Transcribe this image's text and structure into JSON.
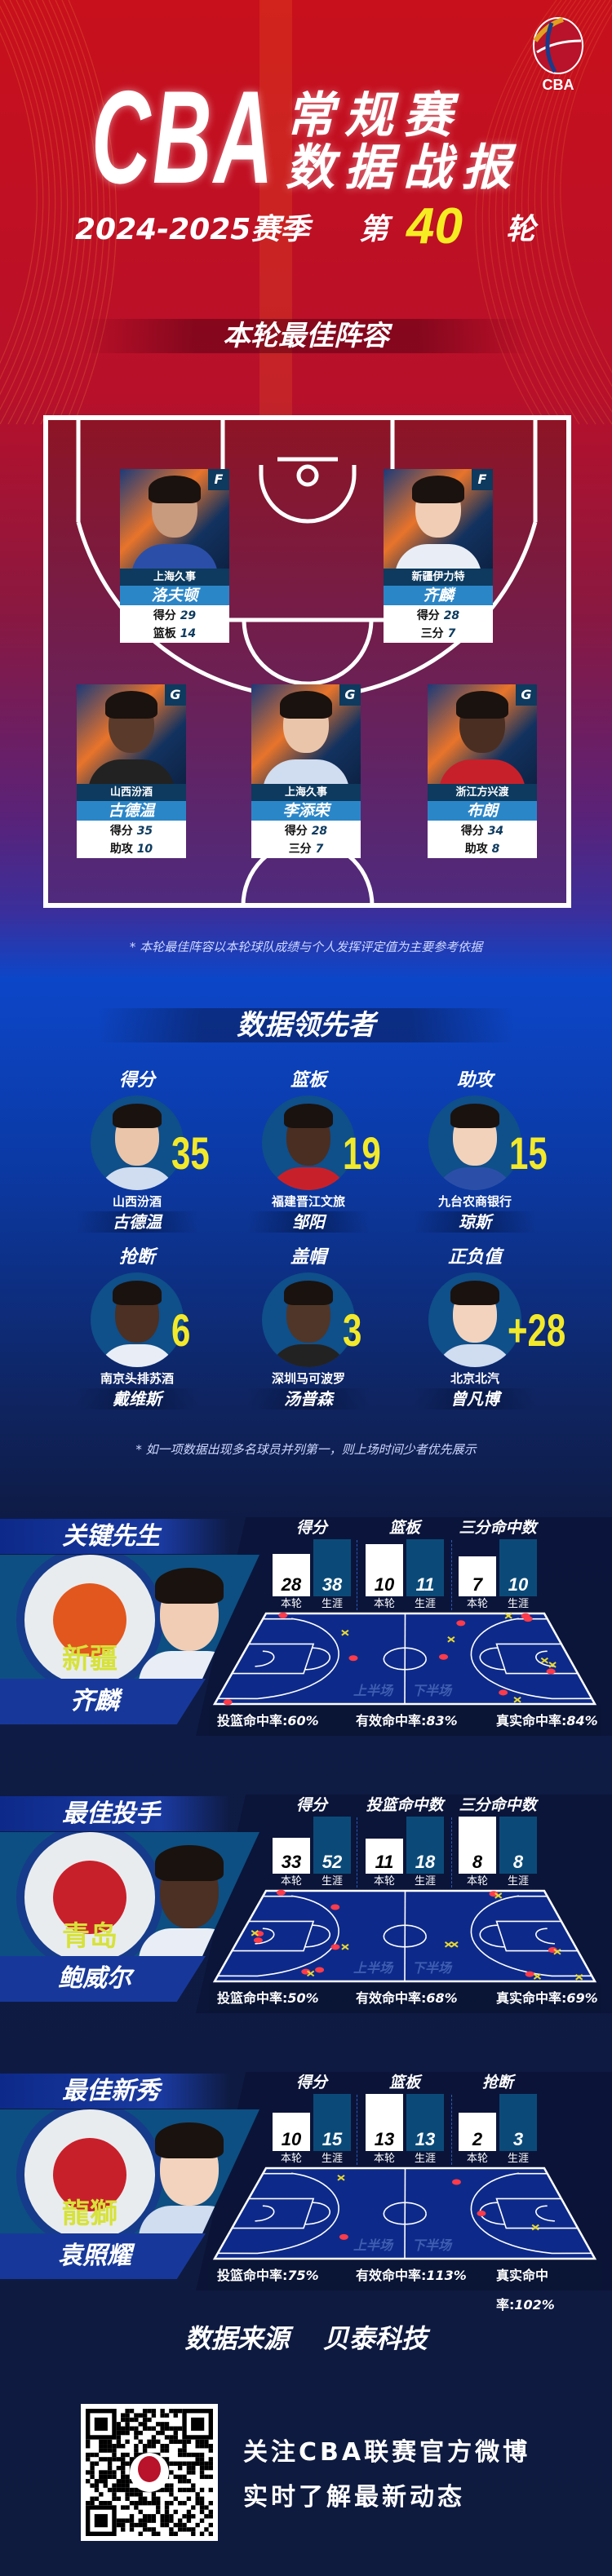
{
  "header": {
    "logo_text": "CBA",
    "title_big": "CBA",
    "title_line1": "常规赛",
    "title_line2": "数据战报",
    "season": "2024-2025赛季",
    "round_prefix": "第",
    "round_number": "40",
    "round_suffix": "轮"
  },
  "lineup": {
    "title": "本轮最佳阵容",
    "players": [
      {
        "position": "F",
        "team": "上海久事",
        "name": "洛夫顿",
        "stats": [
          {
            "label": "得分",
            "value": "29"
          },
          {
            "label": "篮板",
            "value": "14"
          }
        ]
      },
      {
        "position": "F",
        "team": "新疆伊力特",
        "name": "齐麟",
        "stats": [
          {
            "label": "得分",
            "value": "28"
          },
          {
            "label": "三分",
            "value": "7"
          }
        ]
      },
      {
        "position": "G",
        "team": "山西汾酒",
        "name": "古德温",
        "stats": [
          {
            "label": "得分",
            "value": "35"
          },
          {
            "label": "助攻",
            "value": "10"
          }
        ]
      },
      {
        "position": "G",
        "team": "上海久事",
        "name": "李添荣",
        "stats": [
          {
            "label": "得分",
            "value": "28"
          },
          {
            "label": "三分",
            "value": "7"
          }
        ]
      },
      {
        "position": "G",
        "team": "浙江方兴渡",
        "name": "布朗",
        "stats": [
          {
            "label": "得分",
            "value": "34"
          },
          {
            "label": "助攻",
            "value": "8"
          }
        ]
      }
    ],
    "note": "* 本轮最佳阵容以本轮球队成绩与个人发挥评定值为主要参考依据"
  },
  "leaders": {
    "title": "数据领先者",
    "items": [
      {
        "category": "得分",
        "value": "35",
        "team": "山西汾酒",
        "name": "古德温"
      },
      {
        "category": "篮板",
        "value": "19",
        "team": "福建晋江文旅",
        "name": "邹阳"
      },
      {
        "category": "助攻",
        "value": "15",
        "team": "九台农商银行",
        "name": "琼斯"
      },
      {
        "category": "抢断",
        "value": "6",
        "team": "南京头排苏酒",
        "name": "戴维斯"
      },
      {
        "category": "盖帽",
        "value": "3",
        "team": "深圳马可波罗",
        "name": "汤普森"
      },
      {
        "category": "正负值",
        "value": "+28",
        "team": "北京北汽",
        "name": "曾凡博"
      }
    ],
    "note": "* 如一项数据出现多名球员并列第一，则上场时间少者优先展示"
  },
  "spotlights": [
    {
      "title": "关键先生",
      "team_logo_text": "新疆",
      "player": "齐麟",
      "metrics": [
        {
          "label": "得分",
          "this_round": 28,
          "career": 38
        },
        {
          "label": "篮板",
          "this_round": 10,
          "career": 11
        },
        {
          "label": "三分命中数",
          "this_round": 7,
          "career": 10
        }
      ],
      "percentages": [
        {
          "label": "投篮命中率:",
          "value": "60%"
        },
        {
          "label": "有效命中率:",
          "value": "83%"
        },
        {
          "label": "真实命中率:",
          "value": "84%"
        }
      ]
    },
    {
      "title": "最佳投手",
      "team_logo_text": "青岛",
      "player": "鲍威尔",
      "metrics": [
        {
          "label": "得分",
          "this_round": 33,
          "career": 52
        },
        {
          "label": "投篮命中数",
          "this_round": 11,
          "career": 18
        },
        {
          "label": "三分命中数",
          "this_round": 8,
          "career": 8
        }
      ],
      "percentages": [
        {
          "label": "投篮命中率:",
          "value": "50%"
        },
        {
          "label": "有效命中率:",
          "value": "68%"
        },
        {
          "label": "真实命中率:",
          "value": "69%"
        }
      ]
    },
    {
      "title": "最佳新秀",
      "team_logo_text": "龍獅",
      "player": "袁照耀",
      "metrics": [
        {
          "label": "得分",
          "this_round": 10,
          "career": 15
        },
        {
          "label": "篮板",
          "this_round": 13,
          "career": 13
        },
        {
          "label": "抢断",
          "this_round": 2,
          "career": 3
        }
      ],
      "percentages": [
        {
          "label": "投篮命中率:",
          "value": "75%"
        },
        {
          "label": "有效命中率:",
          "value": "113%"
        },
        {
          "label": "真实命中率:",
          "value": "102%"
        }
      ]
    }
  ],
  "bar_labels": {
    "this_round": "本轮",
    "career": "生涯"
  },
  "court_labels": {
    "first_half": "上半场",
    "second_half": "下半场"
  },
  "footer": {
    "source_label": "数据来源",
    "source": "贝泰科技",
    "follow_line1": "关注CBA联赛官方微博",
    "follow_line2": "实时了解最新动态"
  },
  "colors": {
    "accent_yellow": "#f2e92a",
    "made_shot": "#ff3b4a",
    "missed_shot": "#e8d832",
    "card_team_band": "#0d3a5e",
    "card_name_band": "#2b86c8",
    "court_blue": "#0d2a8a"
  }
}
